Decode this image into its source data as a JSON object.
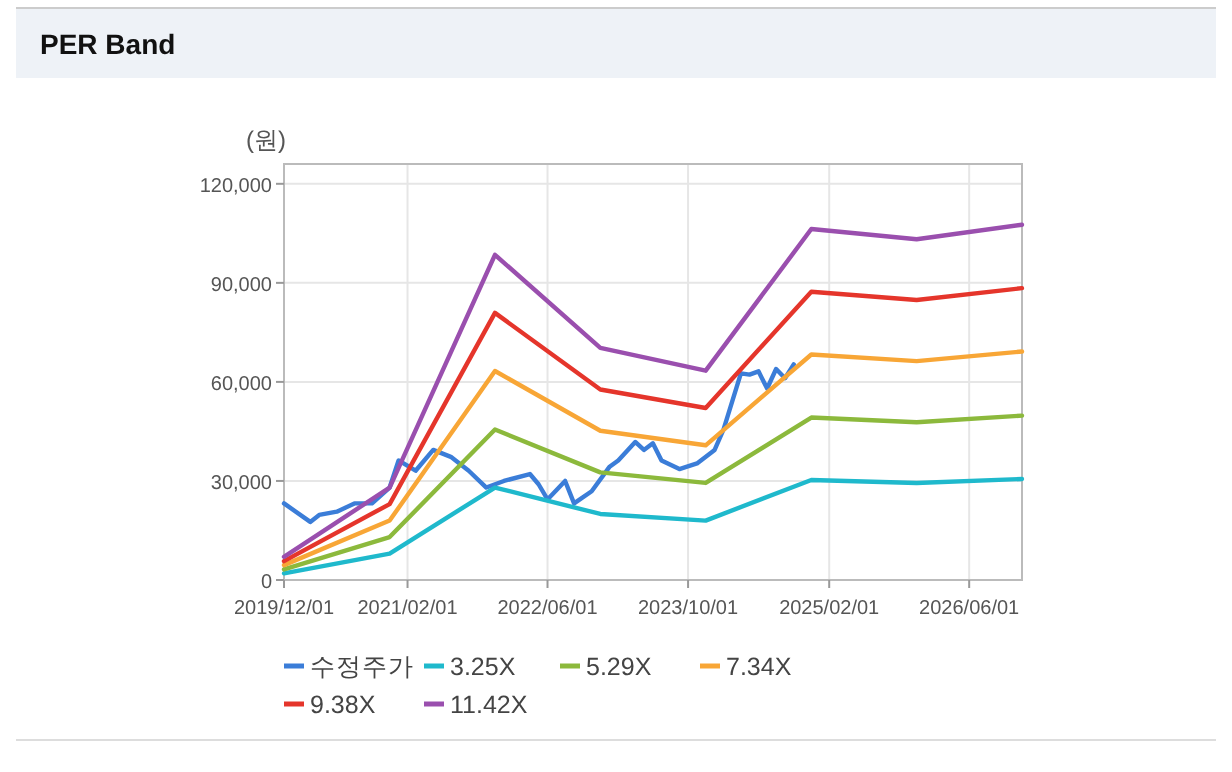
{
  "chart_data": {
    "type": "line",
    "title": "PER Band",
    "ylabel": "(원)",
    "xlim": [
      "2019-12-01",
      "2026-12-01"
    ],
    "ylim": [
      0,
      126000
    ],
    "xticks": [
      {
        "value": "2019-12-01",
        "label": "2019/12/01"
      },
      {
        "value": "2021-02-01",
        "label": "2021/02/01"
      },
      {
        "value": "2022-06-01",
        "label": "2022/06/01"
      },
      {
        "value": "2023-10-01",
        "label": "2023/10/01"
      },
      {
        "value": "2025-02-01",
        "label": "2025/02/01"
      },
      {
        "value": "2026-06-01",
        "label": "2026/06/01"
      }
    ],
    "yticks": [
      {
        "value": 0,
        "label": "0"
      },
      {
        "value": 30000,
        "label": "30,000"
      },
      {
        "value": 60000,
        "label": "60,000"
      },
      {
        "value": 90000,
        "label": "90,000"
      },
      {
        "value": 120000,
        "label": "120,000"
      }
    ],
    "grid": true,
    "legend": "bottom",
    "marker": "none",
    "line_style": "solid",
    "series": [
      {
        "name": "수정주가",
        "color": "#3b7dd8",
        "x": [
          "2019-12-01",
          "2020-03-01",
          "2020-04-01",
          "2020-06-01",
          "2020-08-01",
          "2020-10-01",
          "2020-12-01",
          "2021-01-01",
          "2021-03-01",
          "2021-05-01",
          "2021-07-01",
          "2021-09-01",
          "2021-11-01",
          "2022-01-01",
          "2022-04-01",
          "2022-05-01",
          "2022-06-01",
          "2022-08-01",
          "2022-09-01",
          "2022-11-01",
          "2023-01-01",
          "2023-02-01",
          "2023-04-01",
          "2023-05-01",
          "2023-06-01",
          "2023-07-01",
          "2023-09-01",
          "2023-11-01",
          "2024-01-01",
          "2024-02-01",
          "2024-04-01",
          "2024-05-01",
          "2024-06-01",
          "2024-07-01",
          "2024-08-01",
          "2024-09-01",
          "2024-10-01"
        ],
        "values": [
          23200,
          17600,
          19700,
          20700,
          23200,
          23200,
          28000,
          36200,
          33100,
          39400,
          37300,
          33100,
          28000,
          30000,
          32100,
          29000,
          24400,
          30000,
          23200,
          26900,
          34200,
          36200,
          41800,
          39400,
          41400,
          36200,
          33600,
          35300,
          39400,
          45600,
          62600,
          62200,
          63200,
          58000,
          63900,
          61100,
          65300
        ]
      },
      {
        "name": "3.25X",
        "color": "#1fb9cc",
        "x": [
          "2019-12-01",
          "2020-12-01",
          "2021-12-01",
          "2022-12-01",
          "2023-12-01",
          "2024-12-01",
          "2025-12-01",
          "2026-12-01"
        ],
        "values": [
          2000,
          8000,
          28000,
          20000,
          18000,
          30300,
          29400,
          30600
        ]
      },
      {
        "name": "5.29X",
        "color": "#8cb93c",
        "x": [
          "2019-12-01",
          "2020-12-01",
          "2021-12-01",
          "2022-12-01",
          "2023-12-01",
          "2024-12-01",
          "2025-12-01",
          "2026-12-01"
        ],
        "values": [
          3200,
          13000,
          45600,
          32600,
          29400,
          49200,
          47800,
          49800
        ]
      },
      {
        "name": "7.34X",
        "color": "#f8a636",
        "x": [
          "2019-12-01",
          "2020-12-01",
          "2021-12-01",
          "2022-12-01",
          "2023-12-01",
          "2024-12-01",
          "2025-12-01",
          "2026-12-01"
        ],
        "values": [
          4500,
          18000,
          63300,
          45200,
          40800,
          68300,
          66300,
          69200
        ]
      },
      {
        "name": "9.38X",
        "color": "#e5352b",
        "x": [
          "2019-12-01",
          "2020-12-01",
          "2021-12-01",
          "2022-12-01",
          "2023-12-01",
          "2024-12-01",
          "2025-12-01",
          "2026-12-01"
        ],
        "values": [
          5700,
          23000,
          80900,
          57700,
          52100,
          87300,
          84800,
          88400
        ]
      },
      {
        "name": "11.42X",
        "color": "#9a4fae",
        "x": [
          "2019-12-01",
          "2020-12-01",
          "2021-12-01",
          "2022-12-01",
          "2023-12-01",
          "2024-12-01",
          "2025-12-01",
          "2026-12-01"
        ],
        "values": [
          7000,
          28000,
          98500,
          70300,
          63400,
          106300,
          103200,
          107600
        ]
      }
    ]
  }
}
